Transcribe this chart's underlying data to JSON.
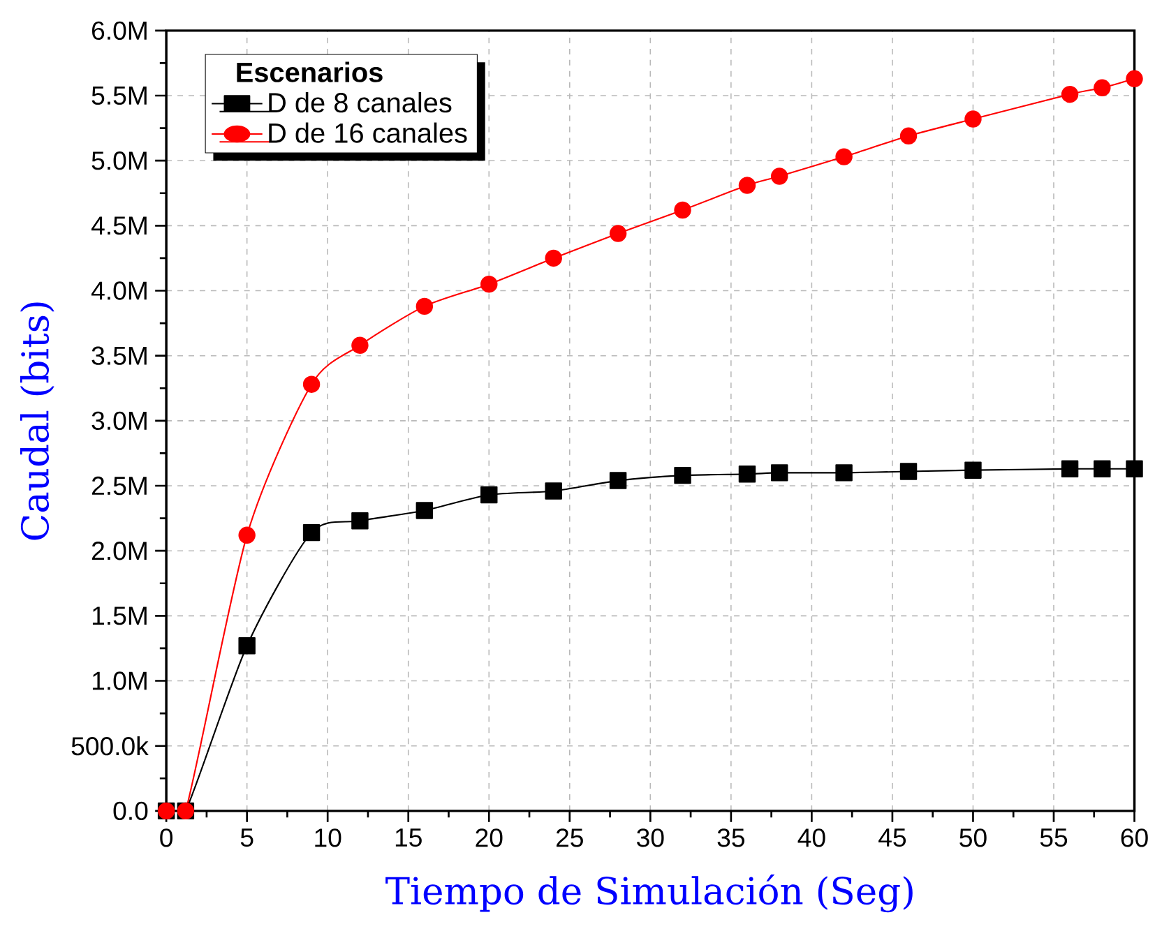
{
  "chart_data": {
    "type": "line",
    "xlabel": "Tiempo de Simulación (Seg)",
    "ylabel": "Caudal (bits)",
    "legend_title": "Escenarios",
    "legend": "top left",
    "grid": true,
    "line_style": "solid",
    "xlim": [
      0,
      60
    ],
    "xticks": [
      0,
      5,
      10,
      15,
      20,
      25,
      30,
      35,
      40,
      45,
      50,
      55,
      60
    ],
    "ylim": [
      0,
      6000000
    ],
    "yticks": [
      {
        "value": 0,
        "label": "0.0"
      },
      {
        "value": 500000,
        "label": "500.0k"
      },
      {
        "value": 1000000,
        "label": "1.0M"
      },
      {
        "value": 1500000,
        "label": "1.5M"
      },
      {
        "value": 2000000,
        "label": "2.0M"
      },
      {
        "value": 2500000,
        "label": "2.5M"
      },
      {
        "value": 3000000,
        "label": "3.0M"
      },
      {
        "value": 3500000,
        "label": "3.5M"
      },
      {
        "value": 4000000,
        "label": "4.0M"
      },
      {
        "value": 4500000,
        "label": "4.5M"
      },
      {
        "value": 5000000,
        "label": "5.0M"
      },
      {
        "value": 5500000,
        "label": "5.5M"
      },
      {
        "value": 6000000,
        "label": "6.0M"
      }
    ],
    "x": [
      0,
      1.2,
      5,
      9,
      12,
      16,
      20,
      24,
      28,
      32,
      36,
      38,
      42,
      46,
      50,
      56,
      58,
      60
    ],
    "series": [
      {
        "name": "D de 8  canales",
        "color": "#000000",
        "marker": "square",
        "values": [
          0,
          0,
          1270000,
          2140000,
          2230000,
          2310000,
          2430000,
          2460000,
          2540000,
          2580000,
          2590000,
          2600000,
          2600000,
          2610000,
          2620000,
          2630000,
          2630000,
          2630000
        ]
      },
      {
        "name": "D de 16 canales",
        "color": "#ff0000",
        "marker": "circle",
        "values": [
          0,
          0,
          2120000,
          3280000,
          3580000,
          3880000,
          4050000,
          4250000,
          4440000,
          4620000,
          4810000,
          4880000,
          5030000,
          5190000,
          5320000,
          5510000,
          5560000,
          5630000
        ]
      }
    ]
  }
}
